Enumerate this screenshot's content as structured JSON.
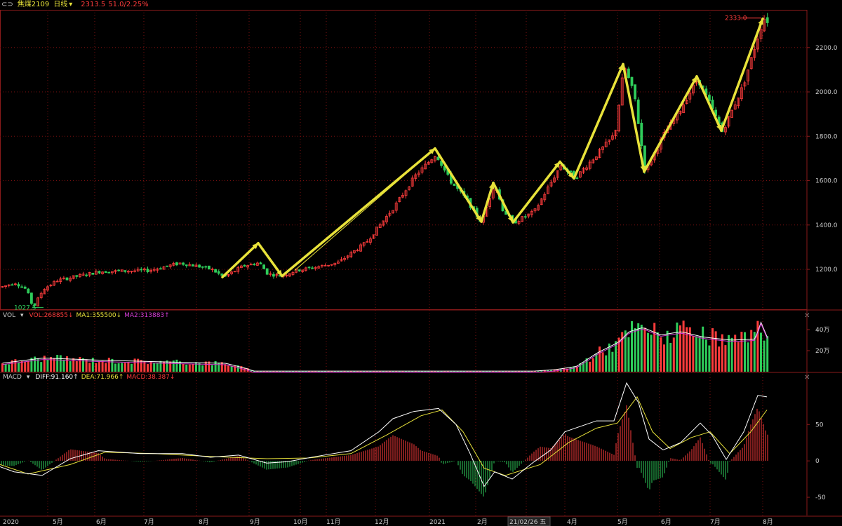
{
  "window": {
    "icon_name": "chain-link-icon",
    "symbol": "焦煤2109",
    "period": "日线",
    "period_arrow": "▾",
    "last_price": "2313.5",
    "change": "51.0/2.25%"
  },
  "vol_panel": {
    "name": "VOL",
    "arrow": "▾",
    "vol": "VOL:268855↓",
    "ma1": "MA1:355500↓",
    "ma2": "MA2:313883↑",
    "close": "✕"
  },
  "macd_panel": {
    "name": "MACD",
    "arrow": "▾",
    "diff": "DIFF:91.160↑",
    "dea": "DEA:71.966↑",
    "macd": "MACD:38.387↓",
    "close": "✕"
  },
  "colors": {
    "up": "#ff3c3c",
    "down": "#2ecc5a",
    "zigzag": "#e8e23a",
    "diff": "#ffffff",
    "dea": "#e8e23a",
    "ma2": "#d23cd2",
    "grid": "#7a1010",
    "text_label": "#ff3c3c",
    "text_green": "#2ecc5a",
    "text_yellow": "#e8e23a"
  },
  "chart_data": {
    "type": "candlestick",
    "price_axis": {
      "ticks": [
        1200.0,
        1400.0,
        1600.0,
        1800.0,
        2000.0,
        2200.0
      ],
      "ylim": [
        1020,
        2370
      ]
    },
    "x_labels": [
      "2020",
      "5月",
      "6月",
      "7月",
      "8月",
      "9月",
      "10月",
      "11月",
      "12月",
      "2021",
      "2月",
      "21/02/26 五",
      "4月",
      "5月",
      "6月",
      "7月",
      "8月"
    ],
    "high_label": "2333.0",
    "low_label": "1027.5",
    "price_path": [
      [
        0,
        1120
      ],
      [
        20,
        1140
      ],
      [
        36,
        1110
      ],
      [
        46,
        1027.5
      ],
      [
        60,
        1110
      ],
      [
        80,
        1150
      ],
      [
        140,
        1190
      ],
      [
        210,
        1195
      ],
      [
        255,
        1228
      ],
      [
        280,
        1215
      ],
      [
        300,
        1200
      ],
      [
        318,
        1165
      ],
      [
        345,
        1215
      ],
      [
        368,
        1230
      ],
      [
        380,
        1180
      ],
      [
        400,
        1170
      ],
      [
        420,
        1195
      ],
      [
        440,
        1205
      ],
      [
        480,
        1230
      ],
      [
        520,
        1320
      ],
      [
        560,
        1480
      ],
      [
        590,
        1620
      ],
      [
        620,
        1720
      ],
      [
        640,
        1600
      ],
      [
        662,
        1520
      ],
      [
        685,
        1410
      ],
      [
        703,
        1590
      ],
      [
        715,
        1470
      ],
      [
        730,
        1410
      ],
      [
        760,
        1460
      ],
      [
        798,
        1670
      ],
      [
        818,
        1610
      ],
      [
        850,
        1720
      ],
      [
        875,
        1810
      ],
      [
        888,
        2120
      ],
      [
        903,
        1980
      ],
      [
        918,
        1640
      ],
      [
        945,
        1810
      ],
      [
        968,
        1920
      ],
      [
        993,
        2060
      ],
      [
        1008,
        1960
      ],
      [
        1028,
        1820
      ],
      [
        1058,
        2030
      ],
      [
        1075,
        2210
      ],
      [
        1087,
        2333
      ],
      [
        1095,
        2313
      ]
    ],
    "zigzag": [
      [
        317,
        1165
      ],
      [
        368,
        1318
      ],
      [
        402,
        1170
      ],
      [
        620,
        1745
      ],
      [
        686,
        1415
      ],
      [
        703,
        1590
      ],
      [
        731,
        1412
      ],
      [
        798,
        1685
      ],
      [
        818,
        1610
      ],
      [
        888,
        2125
      ],
      [
        918,
        1640
      ],
      [
        993,
        2070
      ],
      [
        1028,
        1825
      ],
      [
        1087,
        2330
      ]
    ],
    "zigzag_thin": [
      [
        420,
        1195
      ],
      [
        620,
        1745
      ]
    ],
    "volume": {
      "axis_ticks": [
        "40万",
        "20万"
      ],
      "profile": [
        [
          0,
          8
        ],
        [
          60,
          13
        ],
        [
          140,
          11
        ],
        [
          250,
          9
        ],
        [
          320,
          8
        ],
        [
          350,
          3
        ],
        [
          360,
          0.6
        ],
        [
          760,
          0.6
        ],
        [
          790,
          2
        ],
        [
          820,
          5
        ],
        [
          850,
          18
        ],
        [
          880,
          28
        ],
        [
          895,
          38
        ],
        [
          915,
          42
        ],
        [
          940,
          35
        ],
        [
          970,
          38
        ],
        [
          1000,
          33
        ],
        [
          1040,
          30
        ],
        [
          1075,
          31
        ],
        [
          1083,
          47
        ],
        [
          1095,
          28
        ]
      ]
    },
    "macd": {
      "axis_ticks": [
        50.0,
        0.0,
        -50.0
      ],
      "ylim": [
        -75,
        110
      ],
      "diff": [
        [
          0,
          -8
        ],
        [
          20,
          -15
        ],
        [
          60,
          -20
        ],
        [
          100,
          3
        ],
        [
          140,
          14
        ],
        [
          200,
          10
        ],
        [
          260,
          10
        ],
        [
          300,
          5
        ],
        [
          340,
          8
        ],
        [
          380,
          -3
        ],
        [
          410,
          -1
        ],
        [
          450,
          6
        ],
        [
          500,
          14
        ],
        [
          540,
          40
        ],
        [
          560,
          58
        ],
        [
          590,
          68
        ],
        [
          625,
          72
        ],
        [
          650,
          50
        ],
        [
          670,
          10
        ],
        [
          690,
          -35
        ],
        [
          705,
          -15
        ],
        [
          730,
          -25
        ],
        [
          760,
          -2
        ],
        [
          785,
          15
        ],
        [
          805,
          40
        ],
        [
          820,
          45
        ],
        [
          850,
          55
        ],
        [
          875,
          55
        ],
        [
          893,
          107
        ],
        [
          910,
          80
        ],
        [
          925,
          30
        ],
        [
          945,
          15
        ],
        [
          970,
          25
        ],
        [
          998,
          52
        ],
        [
          1015,
          35
        ],
        [
          1035,
          2
        ],
        [
          1060,
          40
        ],
        [
          1080,
          90
        ],
        [
          1093,
          88
        ]
      ],
      "dea": [
        [
          0,
          -5
        ],
        [
          40,
          -18
        ],
        [
          100,
          -5
        ],
        [
          150,
          12
        ],
        [
          220,
          10
        ],
        [
          300,
          6
        ],
        [
          380,
          3
        ],
        [
          440,
          4
        ],
        [
          500,
          10
        ],
        [
          550,
          35
        ],
        [
          600,
          62
        ],
        [
          630,
          70
        ],
        [
          660,
          40
        ],
        [
          690,
          -10
        ],
        [
          720,
          -20
        ],
        [
          770,
          -5
        ],
        [
          810,
          25
        ],
        [
          850,
          45
        ],
        [
          880,
          52
        ],
        [
          908,
          88
        ],
        [
          930,
          40
        ],
        [
          955,
          17
        ],
        [
          985,
          32
        ],
        [
          1012,
          40
        ],
        [
          1040,
          10
        ],
        [
          1070,
          40
        ],
        [
          1093,
          70
        ]
      ]
    }
  }
}
